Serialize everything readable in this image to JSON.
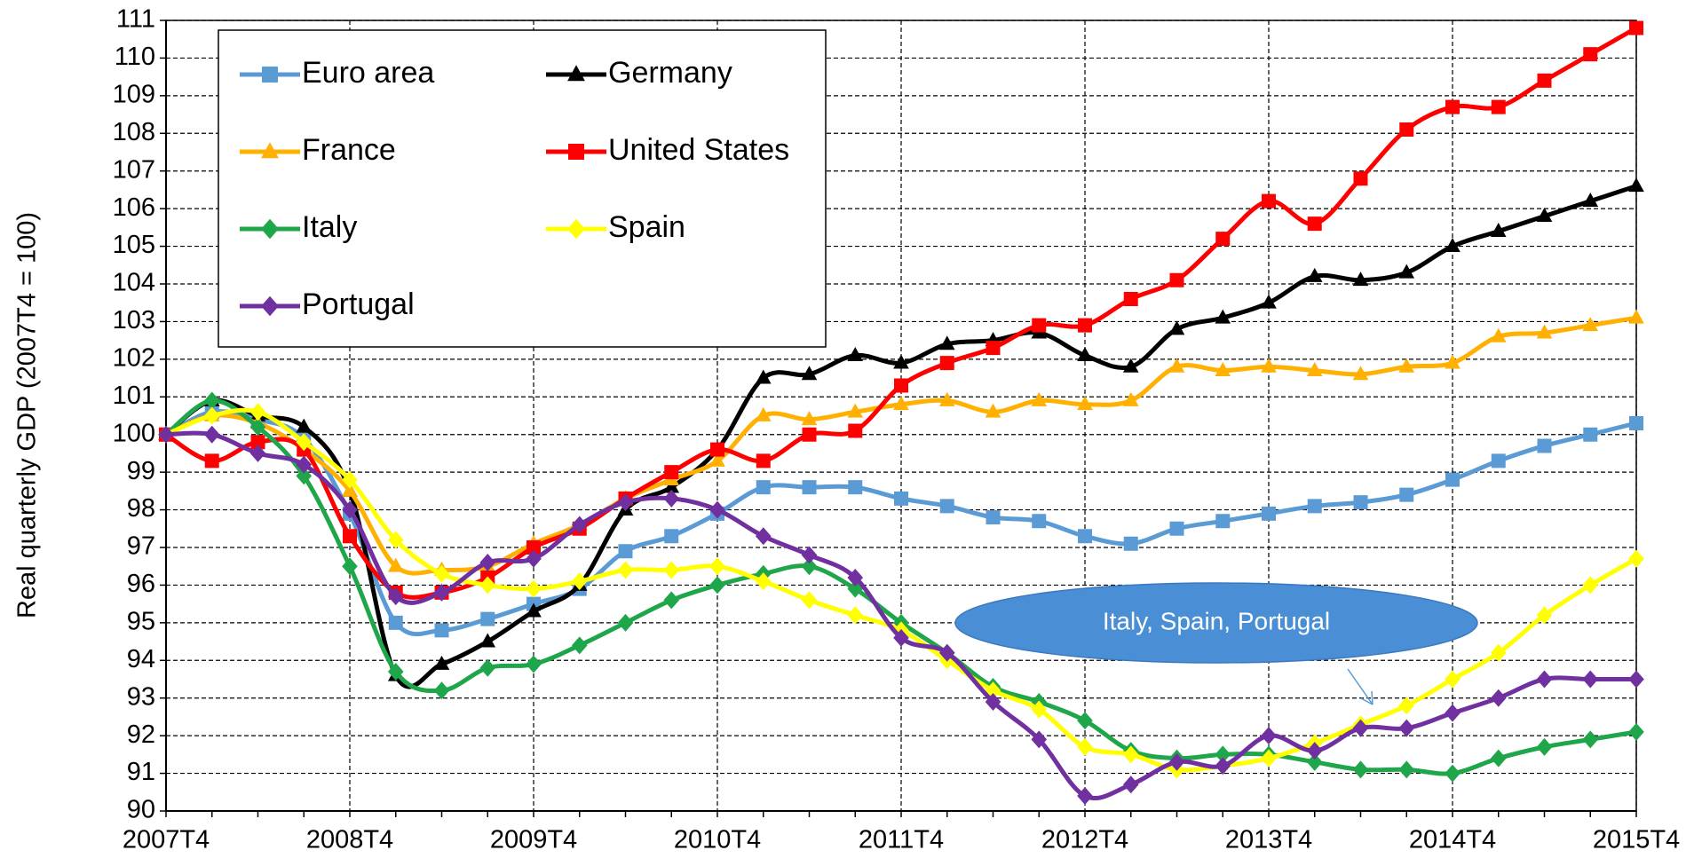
{
  "chart_data": {
    "type": "line",
    "y_label": "Real quarterly GDP (2007T4 = 100)",
    "annotation": "Italy, Spain, Portugal",
    "categories": [
      "2007T4",
      null,
      null,
      null,
      "2008T4",
      null,
      null,
      null,
      "2009T4",
      null,
      null,
      null,
      "2010T4",
      null,
      null,
      null,
      "2011T4",
      null,
      null,
      null,
      "2012T4",
      null,
      null,
      null,
      "2013T4",
      null,
      null,
      null,
      "2014T4",
      null,
      null,
      null,
      "2015T4"
    ],
    "ylim": [
      90,
      111
    ],
    "yticks": [
      90,
      91,
      92,
      93,
      94,
      95,
      96,
      97,
      98,
      99,
      100,
      101,
      102,
      103,
      104,
      105,
      106,
      107,
      108,
      109,
      110,
      111
    ],
    "grid": true,
    "legend": "upper left",
    "series": [
      {
        "name": "Euro area",
        "color": "#5b9bd5",
        "marker": "square",
        "values": [
          100,
          100.6,
          100.4,
          99.9,
          97.9,
          95.0,
          94.8,
          95.1,
          95.5,
          95.9,
          96.9,
          97.3,
          97.9,
          98.6,
          98.6,
          98.6,
          98.3,
          98.1,
          97.8,
          97.7,
          97.3,
          97.1,
          97.5,
          97.7,
          97.9,
          98.1,
          98.2,
          98.4,
          98.8,
          99.3,
          99.7,
          100.0,
          100.3
        ]
      },
      {
        "name": "Germany",
        "color": "#000000",
        "marker": "triangle",
        "values": [
          100,
          100.9,
          100.5,
          100.2,
          98.5,
          93.6,
          93.9,
          94.5,
          95.3,
          96.0,
          98.0,
          98.6,
          99.6,
          101.5,
          101.6,
          102.1,
          101.9,
          102.4,
          102.5,
          102.7,
          102.1,
          101.8,
          102.8,
          103.1,
          103.5,
          104.2,
          104.1,
          104.3,
          105.0,
          105.4,
          105.8,
          106.2,
          106.6
        ]
      },
      {
        "name": "France",
        "color": "#ffb000",
        "marker": "triangle",
        "values": [
          100,
          100.5,
          100.3,
          99.6,
          98.5,
          96.5,
          96.4,
          96.5,
          97.1,
          97.6,
          98.3,
          98.8,
          99.3,
          100.5,
          100.4,
          100.6,
          100.8,
          100.9,
          100.6,
          100.9,
          100.8,
          100.9,
          101.8,
          101.7,
          101.8,
          101.7,
          101.6,
          101.8,
          101.9,
          102.6,
          102.7,
          102.9,
          103.1
        ]
      },
      {
        "name": "United States",
        "color": "#ff0000",
        "marker": "square",
        "values": [
          100,
          99.3,
          99.8,
          99.6,
          97.3,
          95.8,
          95.8,
          96.2,
          97.0,
          97.5,
          98.3,
          99.0,
          99.6,
          99.3,
          100.0,
          100.1,
          101.3,
          101.9,
          102.3,
          102.9,
          102.9,
          103.6,
          104.1,
          105.2,
          106.2,
          105.6,
          106.8,
          108.1,
          108.7,
          108.7,
          109.4,
          110.1,
          110.8
        ]
      },
      {
        "name": "Italy",
        "color": "#1fa64a",
        "marker": "diamond",
        "values": [
          100,
          100.9,
          100.2,
          98.9,
          96.5,
          93.7,
          93.2,
          93.8,
          93.9,
          94.4,
          95.0,
          95.6,
          96.0,
          96.3,
          96.5,
          95.9,
          95.0,
          94.2,
          93.3,
          92.9,
          92.4,
          91.6,
          91.4,
          91.5,
          91.5,
          91.3,
          91.1,
          91.1,
          91.0,
          91.4,
          91.7,
          91.9,
          92.1
        ]
      },
      {
        "name": "Spain",
        "color": "#ffff00",
        "marker": "diamond",
        "values": [
          100,
          100.5,
          100.6,
          99.8,
          98.8,
          97.2,
          96.3,
          96.0,
          95.9,
          96.1,
          96.4,
          96.4,
          96.5,
          96.1,
          95.6,
          95.2,
          94.8,
          94.0,
          93.2,
          92.7,
          91.7,
          91.5,
          91.1,
          91.2,
          91.4,
          91.8,
          92.3,
          92.8,
          93.5,
          94.2,
          95.2,
          96.0,
          96.7
        ]
      },
      {
        "name": "Portugal",
        "color": "#7030a0",
        "marker": "diamond",
        "values": [
          100,
          100.0,
          99.5,
          99.2,
          98.0,
          95.7,
          95.8,
          96.6,
          96.7,
          97.6,
          98.2,
          98.3,
          98.0,
          97.3,
          96.8,
          96.2,
          94.6,
          94.2,
          92.9,
          91.9,
          90.4,
          90.7,
          91.3,
          91.2,
          92.0,
          91.6,
          92.2,
          92.2,
          92.6,
          93.0,
          93.5,
          93.5,
          93.5
        ]
      }
    ]
  }
}
